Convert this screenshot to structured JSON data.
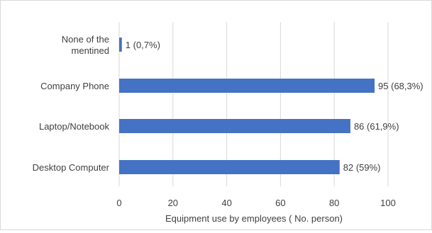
{
  "chart_data": {
    "type": "bar",
    "orientation": "horizontal",
    "categories": [
      "None of the mentined",
      "Company Phone",
      "Laptop/Notebook",
      "Desktop Computer"
    ],
    "category_label_lines": [
      [
        "None of the",
        "mentined"
      ],
      [
        "Company Phone"
      ],
      [
        "Laptop/Notebook"
      ],
      [
        "Desktop Computer"
      ]
    ],
    "values": [
      1,
      95,
      86,
      82
    ],
    "data_labels": [
      "1 (0,7%)",
      "95 (68,3%)",
      "86 (61,9%)",
      "82 (59%)"
    ],
    "xlabel": "Equipment use by employees ( No. person)",
    "ylabel": "",
    "xlim": [
      0,
      100
    ],
    "xticks": [
      0,
      20,
      40,
      60,
      80,
      100
    ],
    "grid": "vertical",
    "legend": "none",
    "bar_color": "#4472C4",
    "grid_color": "#d9d9d9"
  }
}
